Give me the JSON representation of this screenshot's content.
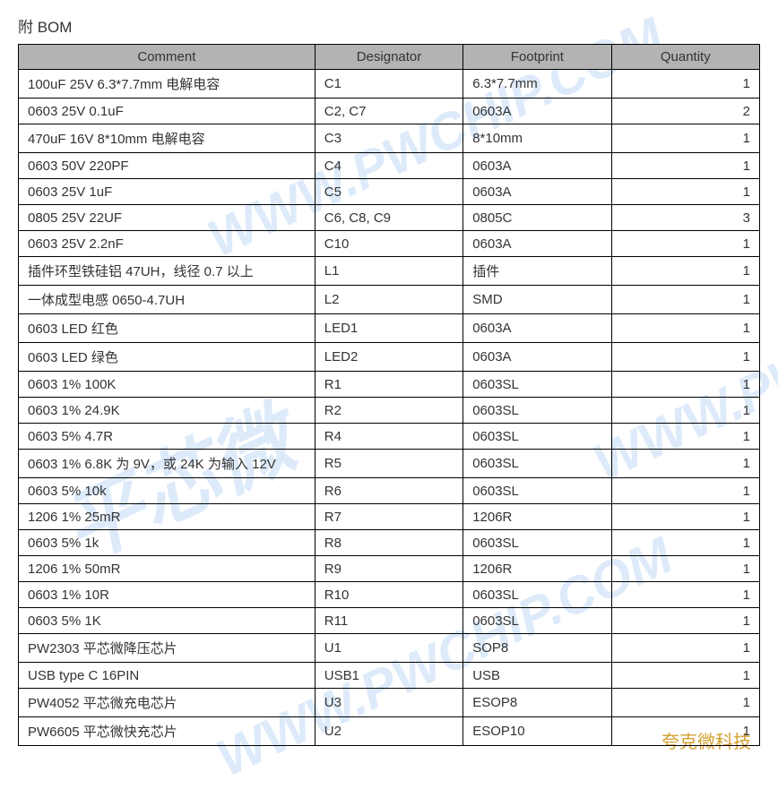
{
  "title": "附 BOM",
  "watermarks": {
    "chinese": "平芯微",
    "domain": "WWW.PWCHIP.COM"
  },
  "footer_brand": "夸克微科技",
  "table": {
    "header_bg": "#b3b3b3",
    "border_color": "#000000",
    "text_color": "#333333",
    "font_size": 15,
    "columns": [
      "Comment",
      "Designator",
      "Footprint",
      "Quantity"
    ],
    "column_widths_pct": [
      40,
      20,
      20,
      20
    ],
    "rows": [
      {
        "comment": "100uF 25V 6.3*7.7mm 电解电容",
        "designator": "C1",
        "footprint": "6.3*7.7mm",
        "quantity": "1"
      },
      {
        "comment": "0603   25V   0.1uF",
        "designator": "C2, C7",
        "footprint": "0603A",
        "quantity": "2"
      },
      {
        "comment": "470uF 16V 8*10mm 电解电容",
        "designator": "C3",
        "footprint": " 8*10mm",
        "quantity": "1"
      },
      {
        "comment": "0603   50V   220PF",
        "designator": "C4",
        "footprint": "0603A",
        "quantity": "1"
      },
      {
        "comment": "0603   25V   1uF",
        "designator": "C5",
        "footprint": "0603A",
        "quantity": "1"
      },
      {
        "comment": "0805   25V   22UF",
        "designator": "C6, C8, C9",
        "footprint": "0805C",
        "quantity": "3"
      },
      {
        "comment": "0603   25V   2.2nF",
        "designator": "C10",
        "footprint": "0603A",
        "quantity": "1"
      },
      {
        "comment": "插件环型铁硅铝 47UH，线径 0.7 以上",
        "designator": "L1",
        "footprint": "插件",
        "quantity": "1"
      },
      {
        "comment": "一体成型电感 0650-4.7UH",
        "designator": "L2",
        "footprint": "SMD",
        "quantity": "1"
      },
      {
        "comment": "0603 LED  红色",
        "designator": "LED1",
        "footprint": "0603A",
        "quantity": "1"
      },
      {
        "comment": "0603 LED  绿色",
        "designator": "LED2",
        "footprint": "0603A",
        "quantity": "1"
      },
      {
        "comment": "0603   1%   100K",
        "designator": "R1",
        "footprint": "0603SL",
        "quantity": "1"
      },
      {
        "comment": "0603   1%   24.9K",
        "designator": "R2",
        "footprint": "0603SL",
        "quantity": "1"
      },
      {
        "comment": "0603 5%   4.7R",
        "designator": "R4",
        "footprint": "0603SL",
        "quantity": "1"
      },
      {
        "comment": "0603 1% 6.8K 为 9V，或 24K 为输入 12V",
        "designator": "R5",
        "footprint": "0603SL",
        "quantity": "1"
      },
      {
        "comment": "0603 5%   10k",
        "designator": "R6",
        "footprint": "0603SL",
        "quantity": "1"
      },
      {
        "comment": "1206 1% 25mR",
        "designator": "R7",
        "footprint": "1206R",
        "quantity": "1"
      },
      {
        "comment": "0603   5%   1k",
        "designator": "R8",
        "footprint": "0603SL",
        "quantity": "1"
      },
      {
        "comment": "1206 1% 50mR",
        "designator": "R9",
        "footprint": "1206R",
        "quantity": "1"
      },
      {
        "comment": "0603 1%   10R",
        "designator": "R10",
        "footprint": "0603SL",
        "quantity": "1"
      },
      {
        "comment": "0603 5%   1K",
        "designator": "R11",
        "footprint": "0603SL",
        "quantity": "1"
      },
      {
        "comment": "PW2303 平芯微降压芯片",
        "designator": "U1",
        "footprint": "SOP8",
        "quantity": "1"
      },
      {
        "comment": "USB type C 16PIN",
        "designator": "USB1",
        "footprint": "USB",
        "quantity": "1"
      },
      {
        "comment": "PW4052 平芯微充电芯片",
        "designator": "U3",
        "footprint": "ESOP8",
        "quantity": "1"
      },
      {
        "comment": "PW6605 平芯微快充芯片",
        "designator": "U2",
        "footprint": "ESOP10",
        "quantity": "1"
      }
    ]
  }
}
